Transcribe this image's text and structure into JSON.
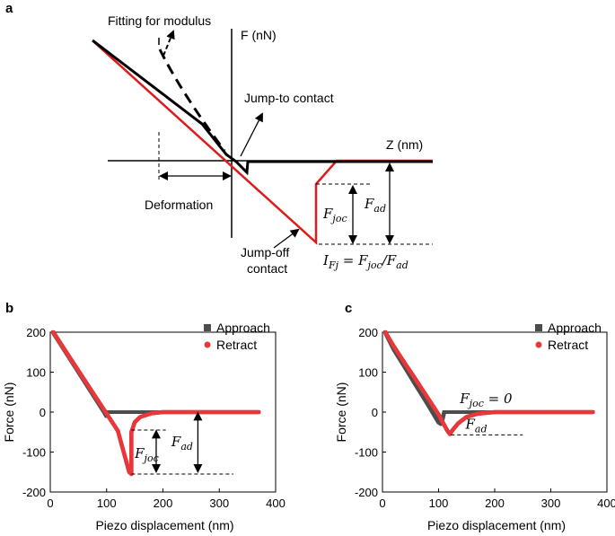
{
  "colors": {
    "approach": "#4d4d4d",
    "retract": "#e8383b",
    "schematic_red": "#e01b1b",
    "black": "#000000"
  },
  "panel_a": {
    "letter": "a",
    "labels": {
      "fitting": "Fitting for modulus",
      "f_axis": "F (nN)",
      "z_axis": "Z (nm)",
      "jump_to": "Jump-to contact",
      "deformation": "Deformation",
      "jump_off_1": "Jump-off",
      "jump_off_2": "contact",
      "f_joc": "F",
      "f_joc_sub": "joc",
      "f_ad": "F",
      "f_ad_sub": "ad",
      "ifj_eq": "I",
      "ifj_sub": "Fj",
      "ifj_rest": " = F",
      "ifj_sub2": "joc",
      "ifj_slash": "/F",
      "ifj_sub3": "ad"
    }
  },
  "chart_data": [
    {
      "panel": "b",
      "type": "scatter",
      "xlabel": "Piezo displacement (nm)",
      "ylabel": "Force (nN)",
      "xlim": [
        0,
        400
      ],
      "ylim": [
        -200,
        200
      ],
      "xticks": [
        0,
        100,
        200,
        300,
        400
      ],
      "yticks": [
        200,
        100,
        0,
        -100,
        -200
      ],
      "legend": "top-right",
      "annotations": {
        "f_joc": "F",
        "f_joc_sub": "joc",
        "f_ad": "F",
        "f_ad_sub": "ad"
      },
      "series": [
        {
          "name": "Approach",
          "x": [
            5,
            20,
            40,
            60,
            80,
            95,
            100,
            100,
            110,
            150,
            200,
            250,
            300,
            350,
            370
          ],
          "y": [
            200,
            167,
            123,
            79,
            35,
            2,
            -10,
            0,
            0,
            0,
            0,
            0,
            0,
            0,
            0
          ]
        },
        {
          "name": "Retract",
          "x": [
            5,
            20,
            40,
            60,
            80,
            100,
            120,
            140,
            144,
            144,
            144,
            144,
            150,
            160,
            180,
            200,
            250,
            300,
            350,
            370
          ],
          "y": [
            200,
            168,
            125,
            82,
            39,
            -4,
            -47,
            -150,
            -155,
            -120,
            -80,
            -50,
            -25,
            -12,
            -3,
            0,
            0,
            0,
            0,
            0
          ]
        }
      ]
    },
    {
      "panel": "c",
      "type": "scatter",
      "xlabel": "Piezo displacement (nm)",
      "ylabel": "Force (nN)",
      "xlim": [
        0,
        400
      ],
      "ylim": [
        -200,
        200
      ],
      "xticks": [
        0,
        100,
        200,
        300,
        400
      ],
      "yticks": [
        200,
        100,
        0,
        -100,
        -200
      ],
      "legend": "top-right",
      "annotations": {
        "f_joc": "F",
        "f_joc_sub": "joc",
        "f_joc_eq": " = 0",
        "f_ad": "F",
        "f_ad_sub": "ad"
      },
      "series": [
        {
          "name": "Approach",
          "x": [
            5,
            20,
            40,
            60,
            80,
            100,
            105,
            110,
            150,
            200,
            250,
            300,
            350,
            375
          ],
          "y": [
            200,
            158,
            113,
            67,
            22,
            -25,
            -30,
            0,
            0,
            0,
            0,
            0,
            0,
            0
          ]
        },
        {
          "name": "Retract",
          "x": [
            5,
            20,
            40,
            60,
            80,
            100,
            115,
            120,
            125,
            135,
            150,
            170,
            200,
            250,
            300,
            350,
            375
          ],
          "y": [
            200,
            165,
            122,
            80,
            37,
            -6,
            -45,
            -55,
            -45,
            -28,
            -12,
            -4,
            0,
            0,
            0,
            0,
            0
          ]
        }
      ]
    }
  ]
}
